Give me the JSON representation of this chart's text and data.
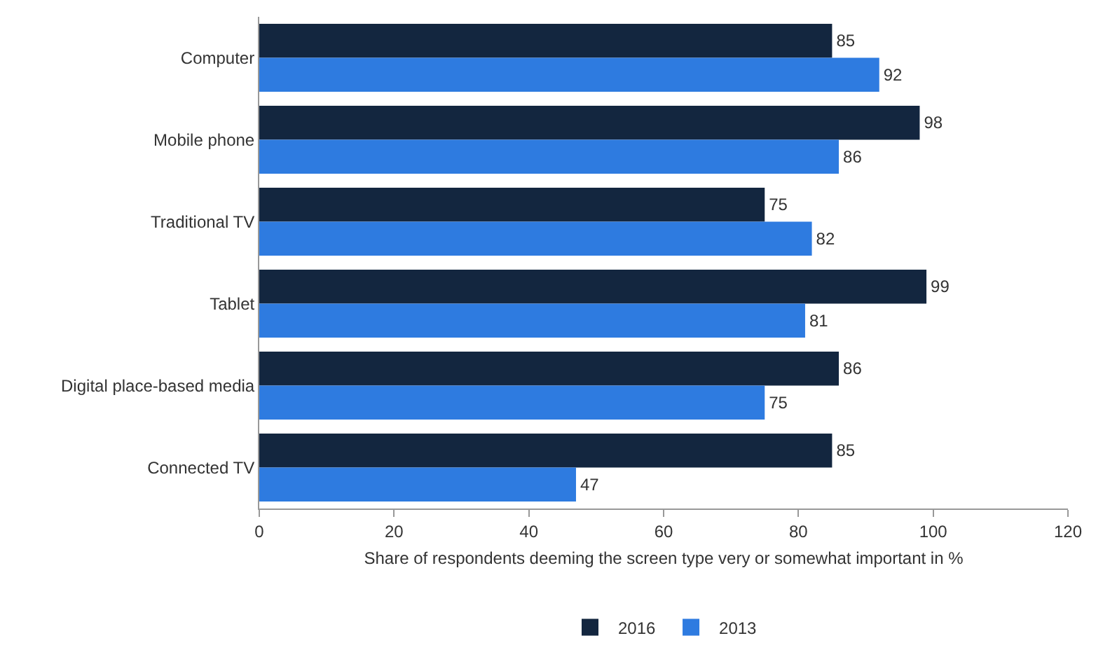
{
  "chart_data": {
    "type": "bar",
    "orientation": "horizontal",
    "xlabel": "Share of respondents deeming the screen type very or somewhat important in %",
    "categories": [
      "Computer",
      "Mobile phone",
      "Traditional TV",
      "Tablet",
      "Digital place-based media",
      "Connected TV"
    ],
    "series": [
      {
        "name": "2016",
        "color": "#13263f",
        "values": [
          85,
          98,
          75,
          99,
          86,
          85
        ]
      },
      {
        "name": "2013",
        "color": "#2e7be0",
        "values": [
          92,
          86,
          82,
          81,
          75,
          47
        ]
      }
    ],
    "xlim": [
      0,
      120
    ],
    "xticks": [
      0,
      20,
      40,
      60,
      80,
      100,
      120
    ],
    "grid": false,
    "legend": "bottom",
    "data_labels": true
  }
}
